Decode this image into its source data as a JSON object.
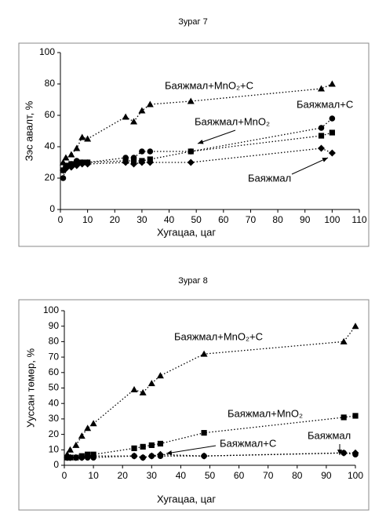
{
  "chart_data": [
    {
      "type": "line",
      "title": "Зураг 7",
      "x_label": "Хугацаа, цаг",
      "y_label": "Зэс авалт, %",
      "x": [
        1,
        2,
        4,
        6,
        8,
        10,
        24,
        27,
        30,
        33,
        48,
        96,
        100
      ],
      "xlim": [
        0,
        110
      ],
      "xticks": [
        0,
        10,
        20,
        30,
        40,
        50,
        60,
        70,
        80,
        90,
        100,
        110
      ],
      "ylim": [
        0,
        100
      ],
      "yticks": [
        0,
        20,
        40,
        60,
        80,
        100
      ],
      "series": [
        {
          "name": "Баяжмал+MnO₂+C",
          "color": "#000000",
          "marker": "triangle",
          "values": [
            30,
            33,
            35,
            39,
            46,
            45,
            59,
            56,
            63,
            67,
            69,
            77,
            80
          ]
        },
        {
          "name": "Баяжмал+C",
          "color": "#000000",
          "marker": "circle",
          "values": [
            20,
            27,
            29,
            31,
            30,
            30,
            33,
            33,
            37,
            37,
            37,
            52,
            58
          ]
        },
        {
          "name": "Баяжмал+MnO₂",
          "color": "#000000",
          "marker": "square",
          "values": [
            25,
            28,
            29,
            30,
            30,
            30,
            31,
            31,
            31,
            32,
            37,
            47,
            49
          ]
        },
        {
          "name": "Баяжмал",
          "color": "#000000",
          "marker": "diamond",
          "values": [
            25,
            26,
            27,
            28,
            29,
            29,
            30,
            29,
            30,
            30,
            30,
            39,
            36
          ]
        }
      ]
    },
    {
      "type": "line",
      "title": "Зураг 8",
      "x_label": "Хугацаа, цаг",
      "y_label": "Уусcан төмөр, %",
      "x": [
        1,
        2,
        4,
        6,
        8,
        10,
        24,
        27,
        30,
        33,
        48,
        96,
        100
      ],
      "xlim": [
        0,
        100
      ],
      "xticks": [
        0,
        10,
        20,
        30,
        40,
        50,
        60,
        70,
        80,
        90,
        100
      ],
      "ylim": [
        0,
        100
      ],
      "yticks": [
        0,
        10,
        20,
        30,
        40,
        50,
        60,
        70,
        80,
        90,
        100
      ],
      "series": [
        {
          "name": "Баяжмал+MnO₂+C",
          "color": "#000000",
          "marker": "triangle",
          "values": [
            7,
            10,
            13,
            19,
            24,
            27,
            49,
            47,
            53,
            58,
            72,
            80,
            90
          ]
        },
        {
          "name": "Баяжмал+MnO₂",
          "color": "#000000",
          "marker": "square",
          "values": [
            5,
            5,
            5,
            6,
            7,
            7,
            11,
            12,
            13,
            14,
            21,
            31,
            32
          ]
        },
        {
          "name": "Баяжмал+C",
          "color": "#000000",
          "marker": "circle",
          "values": [
            5,
            5,
            5,
            5,
            5,
            5,
            6,
            5,
            6,
            6,
            6,
            8,
            7
          ]
        },
        {
          "name": "Баяжмал",
          "color": "#000000",
          "marker": "diamond",
          "values": [
            5,
            5,
            5,
            5,
            6,
            6,
            6,
            5,
            6,
            7,
            6,
            8,
            8
          ]
        }
      ]
    }
  ]
}
